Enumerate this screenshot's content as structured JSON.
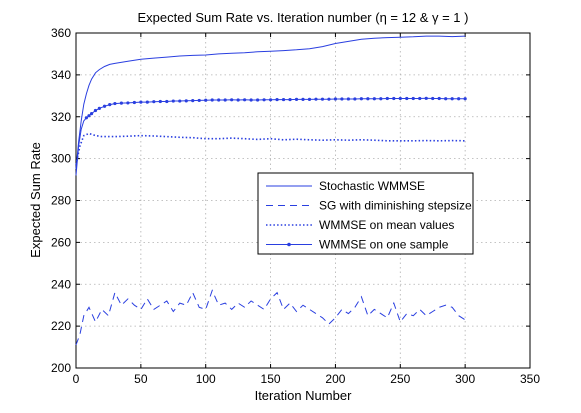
{
  "chart_data": {
    "type": "line",
    "title": "Expected Sum Rate vs. Iteration number (η = 12 & γ = 1 )",
    "xlabel": "Iteration Number",
    "ylabel": "Expected Sum Rate",
    "xlim": [
      0,
      350
    ],
    "ylim": [
      200,
      360
    ],
    "xticks": [
      "0",
      "50",
      "100",
      "150",
      "200",
      "250",
      "300",
      "350"
    ],
    "yticks": [
      "200",
      "220",
      "240",
      "260",
      "280",
      "300",
      "320",
      "340",
      "360"
    ],
    "grid": true,
    "legend_position": "center-right",
    "line_color": "#2a3fe0",
    "series": [
      {
        "name": "Stochastic WMMSE",
        "style": "solid",
        "x": [
          0,
          2,
          4,
          6,
          8,
          10,
          12,
          15,
          18,
          22,
          26,
          30,
          40,
          50,
          60,
          70,
          80,
          90,
          100,
          110,
          120,
          130,
          140,
          150,
          160,
          170,
          180,
          190,
          200,
          210,
          220,
          230,
          240,
          250,
          260,
          270,
          280,
          290,
          300
        ],
        "y": [
          295,
          308,
          318,
          326,
          331,
          335,
          338,
          341,
          342.5,
          344,
          345,
          345.5,
          346.5,
          347.5,
          348,
          348.5,
          349,
          349.3,
          349.5,
          350,
          350.3,
          350.6,
          351,
          351.3,
          351.6,
          352,
          352.5,
          353.5,
          355,
          356,
          357,
          357.5,
          357.8,
          358,
          358.2,
          358.5,
          358.5,
          358.3,
          358.5
        ]
      },
      {
        "name": "SG with diminishing stepsize",
        "style": "dashed",
        "x": [
          0,
          3,
          6,
          10,
          15,
          20,
          25,
          30,
          35,
          40,
          45,
          50,
          55,
          60,
          65,
          70,
          75,
          80,
          85,
          90,
          95,
          100,
          105,
          110,
          115,
          120,
          125,
          130,
          135,
          140,
          145,
          150,
          155,
          160,
          165,
          170,
          175,
          180,
          185,
          190,
          195,
          200,
          205,
          210,
          215,
          220,
          225,
          230,
          235,
          240,
          245,
          250,
          255,
          260,
          265,
          270,
          275,
          280,
          285,
          290,
          295,
          300
        ],
        "y": [
          211,
          216,
          225,
          229,
          222,
          228,
          225,
          236,
          230,
          233,
          230,
          228,
          233,
          228,
          230,
          232,
          227,
          231,
          230,
          236,
          229,
          228,
          237,
          230,
          231,
          228,
          231,
          229,
          232,
          230,
          228,
          233,
          236,
          228,
          231,
          227,
          230,
          228,
          226,
          224,
          221,
          224,
          228,
          226,
          229,
          234,
          225,
          228,
          226,
          224,
          231,
          222,
          226,
          225,
          228,
          225,
          227,
          229,
          230,
          229,
          225,
          223
        ]
      },
      {
        "name": "WMMSE on mean values",
        "style": "dotted",
        "x": [
          0,
          3,
          6,
          10,
          15,
          20,
          30,
          40,
          50,
          60,
          70,
          80,
          90,
          100,
          110,
          120,
          130,
          140,
          150,
          160,
          170,
          180,
          190,
          200,
          210,
          220,
          230,
          240,
          250,
          260,
          270,
          280,
          290,
          300
        ],
        "y": [
          297,
          306,
          311,
          312,
          311,
          310.5,
          310.5,
          310.7,
          311,
          310.8,
          310.5,
          310.2,
          310,
          309.5,
          309.5,
          309.8,
          309.5,
          309.2,
          309.5,
          309,
          309.3,
          309,
          308.8,
          309,
          308.8,
          309,
          308.8,
          308.5,
          308.5,
          308.5,
          308.6,
          308.5,
          308.6,
          308.5
        ]
      },
      {
        "name": "WMMSE on one sample",
        "style": "solid-marker",
        "x": [
          0,
          2,
          4,
          6,
          8,
          10,
          12,
          15,
          18,
          22,
          26,
          30,
          35,
          40,
          45,
          50,
          55,
          60,
          65,
          70,
          75,
          80,
          85,
          90,
          95,
          100,
          105,
          110,
          115,
          120,
          125,
          130,
          135,
          140,
          145,
          150,
          155,
          160,
          165,
          170,
          175,
          180,
          185,
          190,
          195,
          200,
          205,
          210,
          215,
          220,
          225,
          230,
          235,
          240,
          245,
          250,
          255,
          260,
          265,
          270,
          275,
          280,
          285,
          290,
          295,
          300
        ],
        "y": [
          292,
          306,
          314,
          318,
          319.5,
          320.5,
          321.5,
          323,
          324,
          325,
          325.8,
          326.3,
          326.5,
          326.6,
          326.8,
          327,
          327,
          327.2,
          327.3,
          327.3,
          327.5,
          327.5,
          327.6,
          327.7,
          327.8,
          327.9,
          328,
          328,
          328,
          328.1,
          328,
          328.1,
          328,
          328,
          328.1,
          328.1,
          328.2,
          328.2,
          328.2,
          328.3,
          328.3,
          328.3,
          328.4,
          328.4,
          328.4,
          328.5,
          328.5,
          328.5,
          328.5,
          328.6,
          328.6,
          328.6,
          328.6,
          328.7,
          328.7,
          328.7,
          328.7,
          328.7,
          328.7,
          328.8,
          328.7,
          328.7,
          328.6,
          328.6,
          328.6,
          328.6
        ]
      }
    ]
  }
}
